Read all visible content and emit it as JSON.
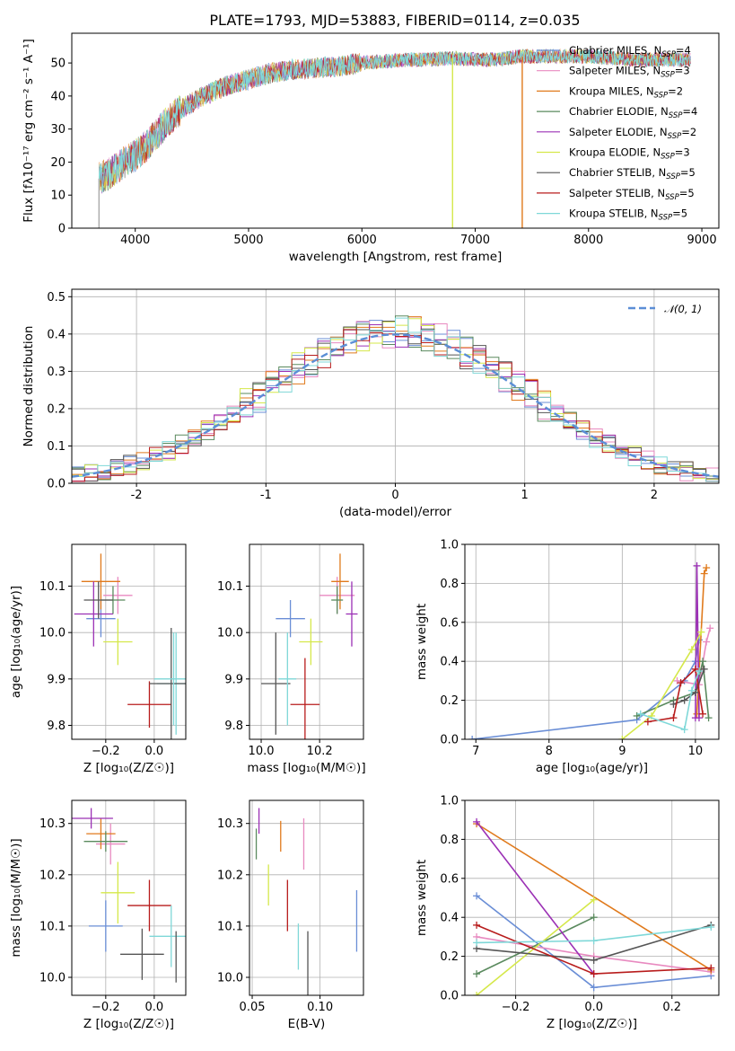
{
  "figure_title": "PLATE=1793, MJD=53883, FIBERID=0114, z=0.035",
  "palette": [
    {
      "name": "Chabrier MILES",
      "nssp": "4",
      "color": "#6a8ed6"
    },
    {
      "name": "Salpeter MILES",
      "nssp": "3",
      "color": "#e88ac0"
    },
    {
      "name": "Kroupa MILES",
      "nssp": "2",
      "color": "#e07a1c"
    },
    {
      "name": "Chabrier ELODIE",
      "nssp": "4",
      "color": "#5a8a5e"
    },
    {
      "name": "Salpeter ELODIE",
      "nssp": "2",
      "color": "#9b30b5"
    },
    {
      "name": "Kroupa ELODIE",
      "nssp": "3",
      "color": "#d5e84a"
    },
    {
      "name": "Chabrier STELIB",
      "nssp": "5",
      "color": "#555555"
    },
    {
      "name": "Salpeter STELIB",
      "nssp": "5",
      "color": "#b81c1c"
    },
    {
      "name": "Kroupa STELIB",
      "nssp": "5",
      "color": "#7fd8d8"
    }
  ],
  "chart_data": [
    {
      "id": "spectrum",
      "type": "line",
      "title": "PLATE=1793, MJD=53883, FIBERID=0114, z=0.035",
      "xlabel": "wavelength [Angstrom, rest frame]",
      "ylabel": "Flux [fλ10⁻¹⁷ erg cm⁻² s⁻¹ A⁻¹]",
      "xlim": [
        3440,
        9150
      ],
      "ylim": [
        0,
        59
      ],
      "xticks": [
        4000,
        5000,
        6000,
        7000,
        8000,
        9000
      ],
      "yticks": [
        0,
        10,
        20,
        30,
        40,
        50
      ],
      "grid": false,
      "legend": "right",
      "continuum": {
        "x": [
          3680,
          3800,
          3900,
          4000,
          4100,
          4200,
          4300,
          4400,
          4600,
          4800,
          5000,
          5200,
          5400,
          5600,
          5800,
          6000,
          6200,
          6400,
          6600,
          6800,
          7000,
          7200,
          7400,
          7600,
          7800,
          8000,
          8200,
          8400,
          8600,
          8800
        ],
        "y": [
          15,
          17,
          20,
          22,
          25,
          29,
          33,
          36,
          40,
          43,
          45,
          47,
          48,
          48.5,
          49,
          50,
          50.5,
          51,
          51,
          51.5,
          51,
          51,
          52,
          52,
          52,
          52,
          51.5,
          51,
          51,
          51
        ]
      },
      "drops": [
        {
          "x": 6800,
          "color": "#d5e84a"
        },
        {
          "x": 7415,
          "color": "#e07a1c"
        },
        {
          "x": 3680,
          "color": "#aaaaaa"
        }
      ]
    },
    {
      "id": "residuals",
      "type": "bar",
      "xlabel": "(data-model)/error",
      "ylabel": "Normed distribution",
      "xlim": [
        -2.5,
        2.5
      ],
      "ylim": [
        0,
        0.52
      ],
      "xticks": [
        -2,
        -1,
        0,
        1,
        2
      ],
      "yticks": [
        0.0,
        0.1,
        0.2,
        0.3,
        0.4,
        0.5
      ],
      "grid": true,
      "legend": "top-right",
      "reference_label": "𝒩(0, 1)",
      "reference_color": "#5b8ed6",
      "histogram": {
        "bin_width": 0.1,
        "x_start": -2.5,
        "bins": 50,
        "envelope": "gaussian"
      }
    },
    {
      "id": "age_vs_Z",
      "type": "scatter",
      "xlabel": "Z [log₁₀(Z/Z☉)]",
      "ylabel": "age  [log₁₀(age/yr)]",
      "xlim": [
        -0.34,
        0.13
      ],
      "ylim": [
        9.77,
        10.19
      ],
      "xticks": [
        -0.2,
        0.0
      ],
      "xticklabels": [
        "−0.2",
        "0.0"
      ],
      "yticks": [
        9.8,
        9.9,
        10.0,
        10.1
      ],
      "grid": true,
      "points": [
        {
          "x": -0.22,
          "y": 10.03,
          "xe": 0.06,
          "ye": 0.04,
          "c": 0
        },
        {
          "x": -0.15,
          "y": 10.08,
          "xe": 0.06,
          "ye": 0.04,
          "c": 1
        },
        {
          "x": -0.22,
          "y": 10.11,
          "xe": 0.08,
          "ye": 0.06,
          "c": 2
        },
        {
          "x": -0.17,
          "y": 10.07,
          "xe": 0.05,
          "ye": 0.03,
          "c": 3
        },
        {
          "x": -0.25,
          "y": 10.04,
          "xe": 0.08,
          "ye": 0.07,
          "c": 4
        },
        {
          "x": -0.15,
          "y": 9.98,
          "xe": 0.06,
          "ye": 0.05,
          "c": 5
        },
        {
          "x": -0.23,
          "y": 10.07,
          "xe": 0.06,
          "ye": 0.04,
          "c": 6
        },
        {
          "x": -0.02,
          "y": 9.845,
          "xe": 0.09,
          "ye": 0.05,
          "c": 7
        },
        {
          "x": 0.09,
          "y": 9.89,
          "xe": 0.08,
          "ye": 0.11,
          "c": 8
        },
        {
          "x": 0.07,
          "y": 9.89,
          "xe": 0.09,
          "ye": 0.12,
          "c": 6
        },
        {
          "x": 0.08,
          "y": 9.9,
          "xe": 0.08,
          "ye": 0.1,
          "c": 8
        }
      ]
    },
    {
      "id": "age_vs_mass",
      "type": "scatter",
      "xlabel": "mass [log₁₀(M/M☉)]",
      "ylabel": "",
      "xlim": [
        9.96,
        10.35
      ],
      "ylim": [
        9.77,
        10.19
      ],
      "xticks": [
        10.0,
        10.2
      ],
      "xticklabels": [
        "10.0",
        "10.2"
      ],
      "yticks": [
        9.8,
        9.9,
        10.0,
        10.1
      ],
      "grid": true,
      "points": [
        {
          "x": 10.1,
          "y": 10.03,
          "xe": 0.05,
          "ye": 0.04,
          "c": 0
        },
        {
          "x": 10.26,
          "y": 10.08,
          "xe": 0.06,
          "ye": 0.04,
          "c": 1
        },
        {
          "x": 10.27,
          "y": 10.11,
          "xe": 0.03,
          "ye": 0.06,
          "c": 2
        },
        {
          "x": 10.26,
          "y": 10.07,
          "xe": 0.02,
          "ye": 0.03,
          "c": 3
        },
        {
          "x": 10.31,
          "y": 10.04,
          "xe": 0.02,
          "ye": 0.07,
          "c": 4
        },
        {
          "x": 10.17,
          "y": 9.98,
          "xe": 0.04,
          "ye": 0.05,
          "c": 5
        },
        {
          "x": 10.05,
          "y": 9.89,
          "xe": 0.05,
          "ye": 0.11,
          "c": 6
        },
        {
          "x": 10.15,
          "y": 9.845,
          "xe": 0.05,
          "ye": 0.1,
          "c": 7
        },
        {
          "x": 10.09,
          "y": 9.9,
          "xe": 0.03,
          "ye": 0.1,
          "c": 8
        }
      ]
    },
    {
      "id": "weight_vs_age",
      "type": "line",
      "xlabel": "age  [log₁₀(age/yr)]",
      "ylabel": "mass weight",
      "xlim": [
        6.85,
        10.32
      ],
      "ylim": [
        0,
        1
      ],
      "xticks": [
        7,
        8,
        9,
        10
      ],
      "yticks": [
        0.0,
        0.2,
        0.4,
        0.6,
        0.8,
        1.0
      ],
      "grid": true,
      "series": [
        {
          "c": 0,
          "x": [
            6.95,
            9.2,
            9.85,
            10.0,
            10.05
          ],
          "y": [
            0.0,
            0.1,
            0.3,
            0.4,
            0.51
          ]
        },
        {
          "c": 1,
          "x": [
            9.75,
            10.05,
            10.15,
            10.2
          ],
          "y": [
            0.3,
            0.28,
            0.5,
            0.57
          ]
        },
        {
          "c": 2,
          "x": [
            10.02,
            10.12,
            10.15
          ],
          "y": [
            0.13,
            0.85,
            0.88
          ]
        },
        {
          "c": 3,
          "x": [
            9.2,
            9.7,
            10.0,
            10.1,
            10.18
          ],
          "y": [
            0.12,
            0.2,
            0.24,
            0.4,
            0.11
          ]
        },
        {
          "c": 4,
          "x": [
            10.0,
            10.02,
            10.05
          ],
          "y": [
            0.11,
            0.89,
            0.11
          ]
        },
        {
          "c": 5,
          "x": [
            9.0,
            9.4,
            9.95,
            10.08
          ],
          "y": [
            0.0,
            0.12,
            0.46,
            0.55
          ]
        },
        {
          "c": 6,
          "x": [
            9.7,
            9.85,
            10.0,
            10.12
          ],
          "y": [
            0.18,
            0.2,
            0.24,
            0.36
          ]
        },
        {
          "c": 7,
          "x": [
            9.35,
            9.7,
            9.8,
            10.0,
            10.1
          ],
          "y": [
            0.09,
            0.11,
            0.29,
            0.36,
            0.13
          ]
        },
        {
          "c": 8,
          "x": [
            9.25,
            9.85,
            9.95,
            10.05
          ],
          "y": [
            0.13,
            0.05,
            0.25,
            0.35
          ]
        }
      ]
    },
    {
      "id": "mass_vs_Z",
      "type": "scatter",
      "xlabel": "Z [log₁₀(Z/Z☉)]",
      "ylabel": "mass [log₁₀(M/M☉)]",
      "xlim": [
        -0.34,
        0.13
      ],
      "ylim": [
        9.965,
        10.345
      ],
      "xticks": [
        -0.2,
        0.0
      ],
      "xticklabels": [
        "−0.2",
        "0.0"
      ],
      "yticks": [
        10.0,
        10.1,
        10.2,
        10.3
      ],
      "grid": true,
      "points": [
        {
          "x": -0.2,
          "y": 10.1,
          "xe": 0.07,
          "ye": 0.05,
          "c": 0
        },
        {
          "x": -0.18,
          "y": 10.26,
          "xe": 0.06,
          "ye": 0.04,
          "c": 1
        },
        {
          "x": -0.22,
          "y": 10.28,
          "xe": 0.06,
          "ye": 0.03,
          "c": 2
        },
        {
          "x": -0.2,
          "y": 10.265,
          "xe": 0.09,
          "ye": 0.02,
          "c": 3
        },
        {
          "x": -0.26,
          "y": 10.31,
          "xe": 0.09,
          "ye": 0.02,
          "c": 4
        },
        {
          "x": -0.15,
          "y": 10.165,
          "xe": 0.07,
          "ye": 0.06,
          "c": 5
        },
        {
          "x": -0.05,
          "y": 10.045,
          "xe": 0.09,
          "ye": 0.05,
          "c": 6
        },
        {
          "x": -0.02,
          "y": 10.14,
          "xe": 0.09,
          "ye": 0.05,
          "c": 7
        },
        {
          "x": 0.07,
          "y": 10.08,
          "xe": 0.09,
          "ye": 0.06,
          "c": 8
        },
        {
          "x": 0.09,
          "y": 10.04,
          "xe": 0.0,
          "ye": 0.05,
          "c": 6
        }
      ]
    },
    {
      "id": "mass_vs_EBV",
      "type": "scatter",
      "xlabel": "E(B-V)",
      "ylabel": "",
      "xlim": [
        0.048,
        0.132
      ],
      "ylim": [
        9.965,
        10.345
      ],
      "xticks": [
        0.05,
        0.1
      ],
      "xticklabels": [
        "0.05",
        "0.10"
      ],
      "yticks": [
        10.0,
        10.1,
        10.2,
        10.3
      ],
      "grid": true,
      "points": [
        {
          "x": 0.127,
          "y": 10.11,
          "xe": 0,
          "ye": 0.06,
          "c": 0
        },
        {
          "x": 0.088,
          "y": 10.26,
          "xe": 0,
          "ye": 0.05,
          "c": 1
        },
        {
          "x": 0.071,
          "y": 10.275,
          "xe": 0,
          "ye": 0.03,
          "c": 2
        },
        {
          "x": 0.053,
          "y": 10.26,
          "xe": 0,
          "ye": 0.03,
          "c": 3
        },
        {
          "x": 0.055,
          "y": 10.305,
          "xe": 0,
          "ye": 0.025,
          "c": 4
        },
        {
          "x": 0.062,
          "y": 10.18,
          "xe": 0,
          "ye": 0.04,
          "c": 5
        },
        {
          "x": 0.091,
          "y": 10.02,
          "xe": 0,
          "ye": 0.07,
          "c": 6
        },
        {
          "x": 0.076,
          "y": 10.14,
          "xe": 0,
          "ye": 0.05,
          "c": 7
        },
        {
          "x": 0.084,
          "y": 10.06,
          "xe": 0,
          "ye": 0.045,
          "c": 8
        }
      ]
    },
    {
      "id": "weight_vs_Z",
      "type": "line",
      "xlabel": "Z [log₁₀(Z/Z☉)]",
      "ylabel": "mass weight",
      "xlim": [
        -0.33,
        0.32
      ],
      "ylim": [
        0,
        1
      ],
      "xticks": [
        -0.2,
        0.0,
        0.2
      ],
      "xticklabels": [
        "−0.2",
        "0.0",
        "0.2"
      ],
      "yticks": [
        0.0,
        0.2,
        0.4,
        0.6,
        0.8,
        1.0
      ],
      "grid": true,
      "series": [
        {
          "c": 0,
          "x": [
            -0.3,
            0.0,
            0.3
          ],
          "y": [
            0.51,
            0.04,
            0.1
          ]
        },
        {
          "c": 1,
          "x": [
            -0.3,
            0.0,
            0.3
          ],
          "y": [
            0.3,
            0.2,
            0.12
          ]
        },
        {
          "c": 2,
          "x": [
            -0.3,
            0.3
          ],
          "y": [
            0.88,
            0.13
          ]
        },
        {
          "c": 3,
          "x": [
            -0.3,
            0.0
          ],
          "y": [
            0.11,
            0.4
          ]
        },
        {
          "c": 4,
          "x": [
            -0.3,
            0.0
          ],
          "y": [
            0.89,
            0.11
          ]
        },
        {
          "c": 5,
          "x": [
            -0.3,
            0.0
          ],
          "y": [
            0.0,
            0.49
          ]
        },
        {
          "c": 6,
          "x": [
            -0.3,
            0.0,
            0.3
          ],
          "y": [
            0.24,
            0.18,
            0.36
          ]
        },
        {
          "c": 7,
          "x": [
            -0.3,
            0.0,
            0.3
          ],
          "y": [
            0.36,
            0.11,
            0.14
          ]
        },
        {
          "c": 8,
          "x": [
            -0.3,
            0.0,
            0.3
          ],
          "y": [
            0.27,
            0.28,
            0.35
          ]
        }
      ]
    }
  ]
}
